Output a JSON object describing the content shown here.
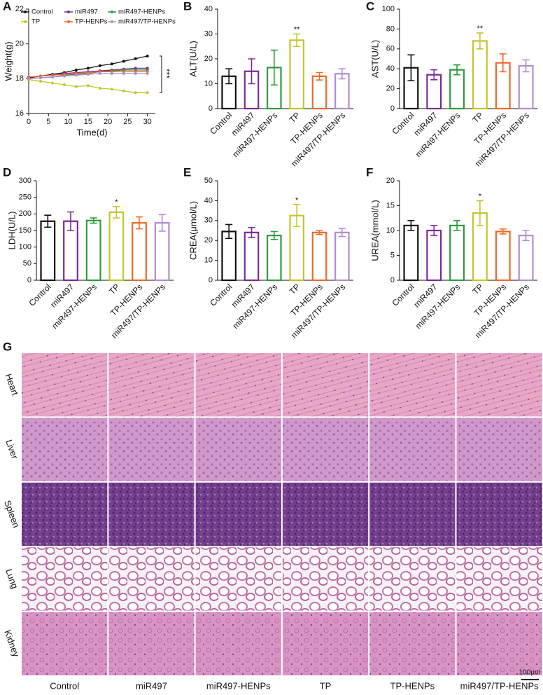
{
  "chart_data": [
    {
      "type": "line",
      "panel_label": "A",
      "x_label": "Time(d)",
      "y_label": "Weight(g)",
      "x": [
        0,
        3,
        6,
        9,
        12,
        15,
        18,
        21,
        24,
        27,
        30
      ],
      "xlim": [
        0,
        32
      ],
      "xticks": [
        0,
        5,
        10,
        15,
        20,
        25,
        30
      ],
      "ylim": [
        16,
        22
      ],
      "yticks": [
        16,
        18,
        20,
        22
      ],
      "annotation": "***",
      "series": [
        {
          "name": "Control",
          "color": "#111111",
          "values": [
            18.05,
            18.15,
            18.25,
            18.35,
            18.5,
            18.6,
            18.75,
            18.85,
            19.0,
            19.15,
            19.3
          ]
        },
        {
          "name": "miR497",
          "color": "#7b2a96",
          "values": [
            18.1,
            18.15,
            18.2,
            18.3,
            18.35,
            18.4,
            18.45,
            18.5,
            18.55,
            18.6,
            18.6
          ]
        },
        {
          "name": "miR497-HENPs",
          "color": "#2e9a3e",
          "values": [
            18.0,
            18.05,
            18.1,
            18.2,
            18.25,
            18.3,
            18.4,
            18.45,
            18.5,
            18.5,
            18.5
          ]
        },
        {
          "name": "TP",
          "color": "#c4c42c",
          "values": [
            17.95,
            17.85,
            17.75,
            17.65,
            17.55,
            17.6,
            17.45,
            17.4,
            17.3,
            17.2,
            17.2
          ]
        },
        {
          "name": "TP-HENPs",
          "color": "#f06a2a",
          "values": [
            18.1,
            18.15,
            18.2,
            18.25,
            18.3,
            18.35,
            18.4,
            18.4,
            18.4,
            18.4,
            18.4
          ]
        },
        {
          "name": "miR497/TP-HENPs",
          "color": "#b28cd0",
          "values": [
            18.0,
            18.05,
            18.1,
            18.15,
            18.2,
            18.25,
            18.3,
            18.3,
            18.3,
            18.3,
            18.3
          ]
        }
      ]
    },
    {
      "type": "bar",
      "panel_label": "B",
      "y_label": "ALT(U/L)",
      "categories": [
        "Control",
        "miR497",
        "miR497-HENPs",
        "TP",
        "TP-HENPs",
        "miR497/TP-HENPs"
      ],
      "colors": [
        "#111111",
        "#7b2a96",
        "#2e9a3e",
        "#c4c42c",
        "#f06a2a",
        "#b28cd0"
      ],
      "values": [
        13,
        15,
        16.5,
        27.5,
        13,
        14
      ],
      "errors": [
        3,
        5,
        7,
        2.5,
        1.5,
        2
      ],
      "significance": [
        null,
        null,
        null,
        "**",
        null,
        null
      ],
      "ylim": [
        0,
        40
      ],
      "yticks": [
        0,
        10,
        20,
        30,
        40
      ]
    },
    {
      "type": "bar",
      "panel_label": "C",
      "y_label": "AST(U/L)",
      "categories": [
        "Control",
        "miR497",
        "miR497-HENPs",
        "TP",
        "TP-HENPs",
        "miR497/TP-HENPs"
      ],
      "colors": [
        "#111111",
        "#7b2a96",
        "#2e9a3e",
        "#c4c42c",
        "#f06a2a",
        "#b28cd0"
      ],
      "values": [
        41,
        34,
        39,
        68,
        46,
        43
      ],
      "errors": [
        13,
        5,
        5,
        8,
        9,
        6
      ],
      "significance": [
        null,
        null,
        null,
        "**",
        null,
        null
      ],
      "ylim": [
        0,
        100
      ],
      "yticks": [
        0,
        20,
        40,
        60,
        80,
        100
      ]
    },
    {
      "type": "bar",
      "panel_label": "D",
      "y_label": "LDH(U/L)",
      "categories": [
        "Control",
        "miR497",
        "miR497-HENPs",
        "TP",
        "TP-HENPs",
        "miR497/TP-HENPs"
      ],
      "colors": [
        "#111111",
        "#7b2a96",
        "#2e9a3e",
        "#c4c42c",
        "#f06a2a",
        "#b28cd0"
      ],
      "values": [
        178,
        178,
        180,
        205,
        173,
        173
      ],
      "errors": [
        18,
        28,
        8,
        17,
        18,
        25
      ],
      "significance": [
        null,
        null,
        null,
        "*",
        null,
        null
      ],
      "ylim": [
        0,
        300
      ],
      "yticks": [
        0,
        50,
        100,
        150,
        200,
        250,
        300
      ]
    },
    {
      "type": "bar",
      "panel_label": "E",
      "y_label": "CREA(μmol/L)",
      "categories": [
        "Control",
        "miR497",
        "miR497-HENPs",
        "TP",
        "TP-HENPs",
        "miR497/TP-HENPs"
      ],
      "colors": [
        "#111111",
        "#7b2a96",
        "#2e9a3e",
        "#c4c42c",
        "#f06a2a",
        "#b28cd0"
      ],
      "values": [
        24.5,
        24,
        22.5,
        32.5,
        24,
        24
      ],
      "errors": [
        3.5,
        2.5,
        2,
        5.5,
        1,
        2
      ],
      "significance": [
        null,
        null,
        null,
        "*",
        null,
        null
      ],
      "ylim": [
        0,
        50
      ],
      "yticks": [
        0,
        10,
        20,
        30,
        40,
        50
      ]
    },
    {
      "type": "bar",
      "panel_label": "F",
      "y_label": "UREA(mmol/L)",
      "categories": [
        "Control",
        "miR497",
        "miR497-HENPs",
        "TP",
        "TP-HENPs",
        "miR497/TP-HENPs"
      ],
      "colors": [
        "#111111",
        "#7b2a96",
        "#2e9a3e",
        "#c4c42c",
        "#f06a2a",
        "#b28cd0"
      ],
      "values": [
        11,
        10,
        11,
        13.5,
        9.8,
        9
      ],
      "errors": [
        1,
        1,
        1,
        2.5,
        0.5,
        1
      ],
      "significance": [
        null,
        null,
        null,
        "*",
        null,
        null
      ],
      "ylim": [
        0,
        20
      ],
      "yticks": [
        0,
        5,
        10,
        15,
        20
      ]
    }
  ],
  "histology": {
    "panel_label": "G",
    "rows": [
      "Heart",
      "Liver",
      "Spleen",
      "Lung",
      "Kidney"
    ],
    "columns": [
      "Control",
      "miR497",
      "miR497-HENPs",
      "TP",
      "TP-HENPs",
      "miR497/TP-HENPs"
    ],
    "scale_bar": "100μm"
  }
}
